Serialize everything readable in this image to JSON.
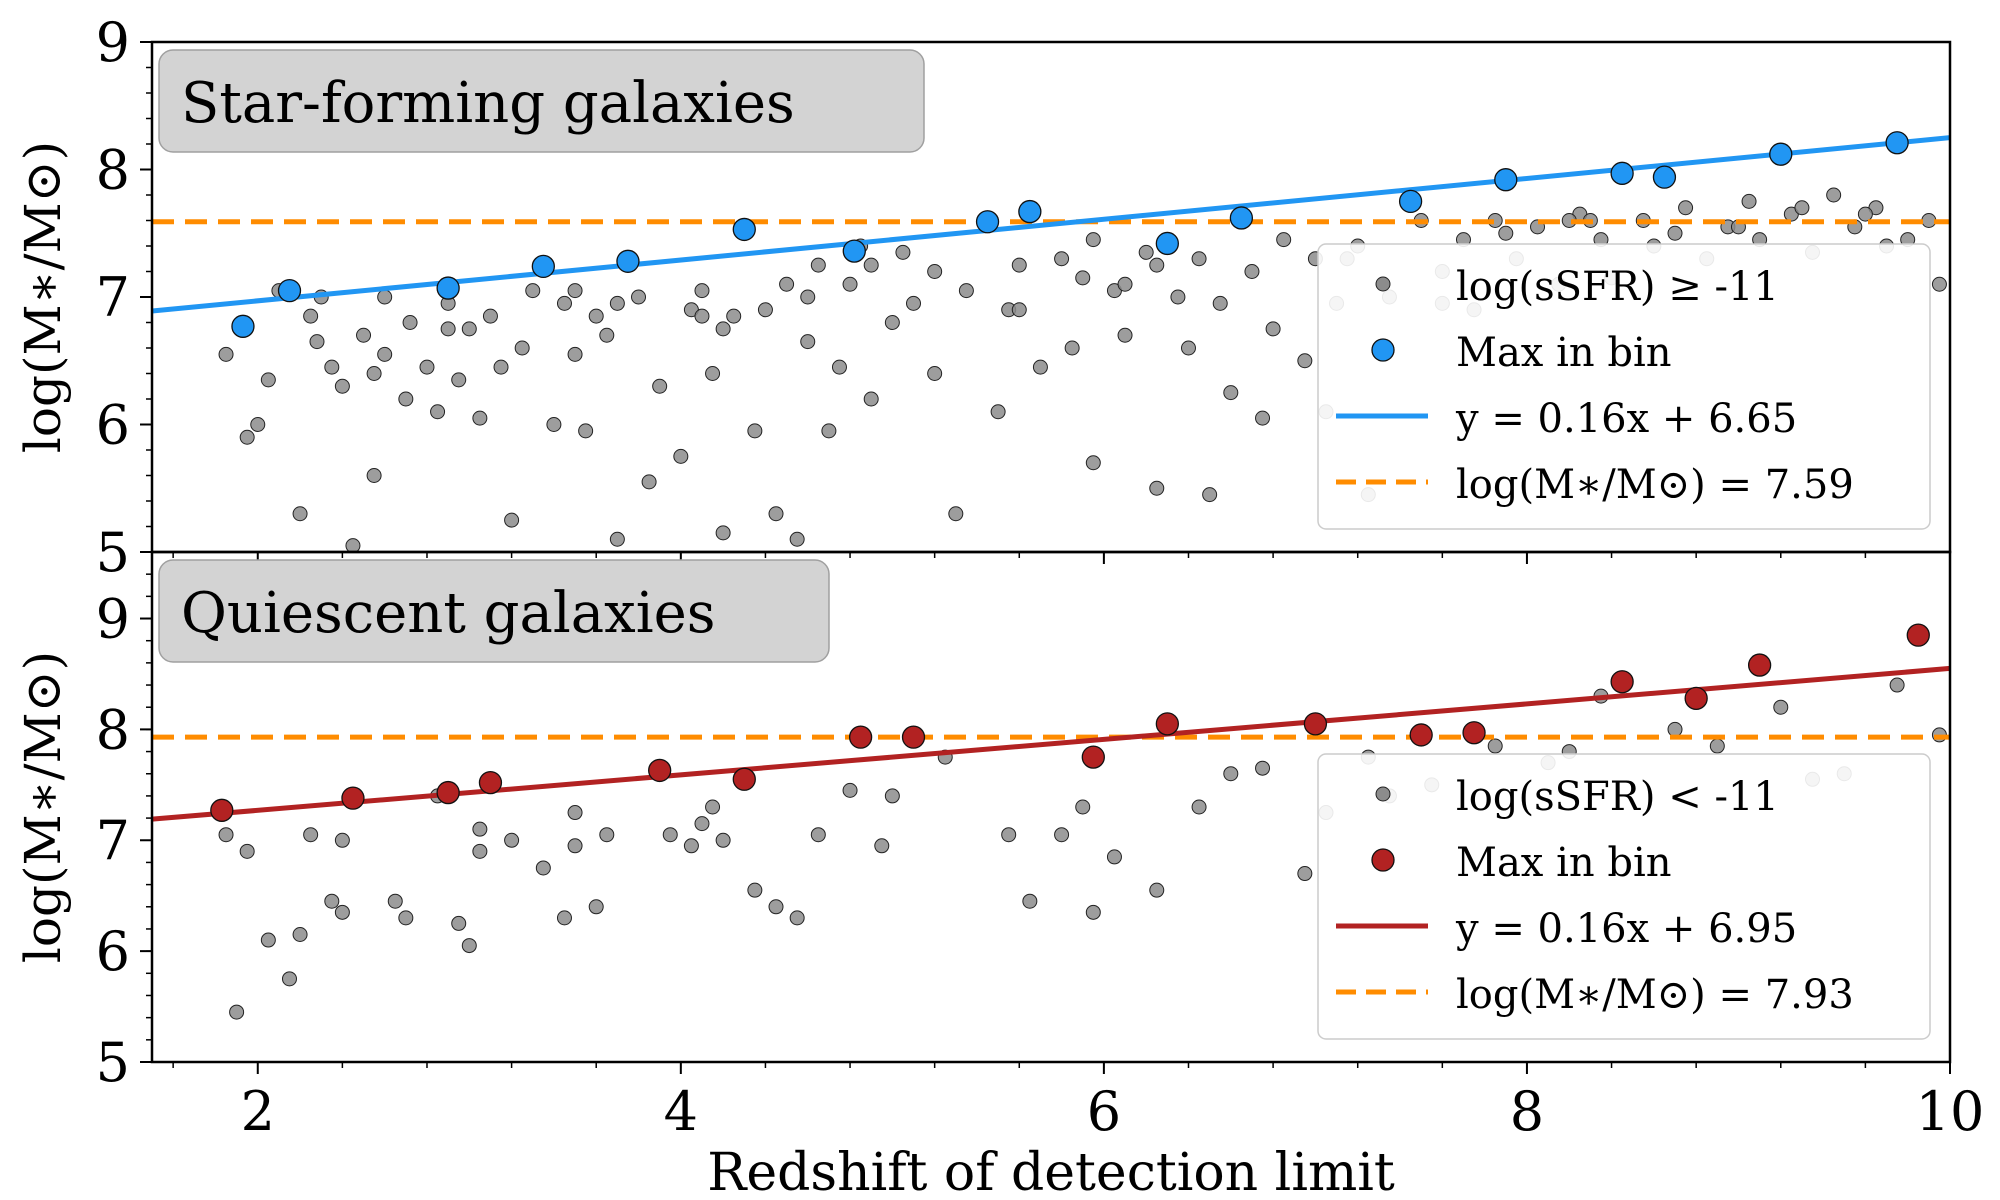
{
  "chart_data": [
    {
      "type": "scatter",
      "panel": "top",
      "title": "Star-forming galaxies",
      "ylabel": "log(M∗/M⊙)",
      "xlim": [
        1.5,
        10
      ],
      "ylim": [
        5,
        9
      ],
      "yticks": [
        "5",
        "6",
        "7",
        "8",
        "9"
      ],
      "legend": {
        "placement": "lower-right",
        "entries": {
          "scatter": "log(sSFR) ≥ -11",
          "max": "Max in bin",
          "fit": "y = 0.16x + 6.65",
          "hline": "log(M∗/M⊙) = 7.59"
        }
      },
      "colors": {
        "max": "#2196f3",
        "fit": "#2196f3",
        "hline": "#ff8c00",
        "scatter": "#8c8c8c"
      },
      "fit": {
        "slope": 0.16,
        "intercept": 6.65
      },
      "hline": 7.59,
      "max_points": {
        "x": [
          1.93,
          2.15,
          2.9,
          3.35,
          3.75,
          4.3,
          4.82,
          5.45,
          5.65,
          6.3,
          6.65,
          7.45,
          7.9,
          8.45,
          8.65,
          9.2,
          9.75
        ],
        "y": [
          6.77,
          7.05,
          7.07,
          7.24,
          7.28,
          7.53,
          7.36,
          7.59,
          7.67,
          7.42,
          7.62,
          7.75,
          7.92,
          7.97,
          7.94,
          8.12,
          8.21
        ]
      },
      "scatter": {
        "x": [
          1.85,
          1.95,
          2.05,
          2.1,
          2.2,
          2.28,
          2.3,
          2.4,
          2.45,
          2.5,
          2.55,
          2.6,
          2.6,
          2.7,
          2.72,
          2.8,
          2.85,
          2.9,
          2.95,
          3.05,
          3.1,
          3.2,
          3.25,
          3.3,
          3.4,
          3.45,
          3.5,
          3.55,
          3.6,
          3.65,
          3.7,
          3.8,
          3.85,
          3.9,
          4.0,
          4.05,
          4.1,
          4.15,
          4.2,
          4.25,
          4.35,
          4.4,
          4.45,
          4.5,
          4.55,
          4.6,
          4.65,
          4.7,
          4.75,
          4.8,
          4.85,
          4.9,
          5.0,
          5.05,
          5.1,
          5.2,
          5.3,
          5.35,
          5.5,
          5.55,
          5.6,
          5.7,
          5.8,
          5.85,
          5.9,
          5.95,
          6.05,
          6.1,
          6.2,
          6.25,
          6.35,
          6.4,
          6.45,
          6.5,
          6.6,
          6.7,
          6.75,
          6.85,
          6.95,
          7.0,
          7.05,
          7.1,
          7.2,
          7.25,
          7.35,
          7.5,
          7.6,
          7.7,
          7.75,
          7.85,
          7.95,
          8.05,
          8.15,
          8.25,
          8.35,
          8.4,
          8.55,
          8.6,
          8.75,
          8.85,
          8.95,
          9.05,
          9.1,
          9.25,
          9.35,
          9.45,
          9.55,
          9.65,
          9.8,
          9.9,
          2.0,
          2.25,
          2.55,
          3.0,
          3.15,
          3.7,
          4.1,
          4.6,
          5.2,
          5.95,
          6.25,
          6.55,
          7.15,
          7.9,
          8.3,
          8.7,
          9.3,
          9.6,
          9.95,
          2.35,
          2.9,
          3.5,
          4.2,
          4.9,
          5.6,
          6.1,
          6.8,
          7.6,
          8.2,
          9.0,
          9.7
        ],
        "y": [
          6.55,
          5.9,
          6.35,
          7.05,
          5.3,
          6.65,
          7.0,
          6.3,
          5.05,
          6.7,
          5.6,
          6.55,
          7.0,
          6.2,
          6.8,
          6.45,
          6.1,
          6.95,
          6.35,
          6.05,
          6.85,
          5.25,
          6.6,
          7.05,
          6.0,
          6.95,
          6.55,
          5.95,
          6.85,
          6.7,
          5.1,
          7.0,
          5.55,
          6.3,
          5.75,
          6.9,
          7.05,
          6.4,
          5.15,
          6.85,
          5.95,
          6.9,
          5.3,
          7.1,
          5.1,
          6.65,
          7.25,
          5.95,
          6.45,
          7.1,
          7.4,
          6.2,
          6.8,
          7.35,
          6.95,
          6.4,
          5.3,
          7.05,
          6.1,
          6.9,
          7.25,
          6.45,
          7.3,
          6.6,
          7.15,
          5.7,
          7.05,
          6.7,
          7.35,
          5.5,
          7.0,
          6.6,
          7.3,
          5.45,
          6.25,
          7.2,
          6.05,
          7.45,
          6.5,
          7.3,
          6.1,
          6.95,
          7.4,
          5.45,
          7.0,
          7.6,
          7.2,
          7.45,
          6.9,
          7.6,
          7.3,
          7.55,
          7.1,
          7.65,
          7.45,
          7.15,
          7.6,
          7.4,
          7.7,
          7.3,
          7.55,
          7.75,
          7.45,
          7.65,
          7.35,
          7.8,
          7.55,
          7.7,
          7.45,
          7.6,
          6.0,
          6.85,
          6.4,
          6.75,
          6.45,
          6.95,
          6.85,
          7.0,
          7.2,
          7.45,
          7.25,
          6.95,
          7.3,
          7.5,
          7.6,
          7.5,
          7.7,
          7.65,
          7.1,
          6.45,
          6.75,
          7.05,
          6.75,
          7.25,
          6.9,
          7.1,
          6.75,
          6.95,
          7.6,
          7.55,
          7.4
        ]
      }
    },
    {
      "type": "scatter",
      "panel": "bottom",
      "title": "Quiescent galaxies",
      "ylabel": "log(M∗/M⊙)",
      "xlabel": "Redshift of detection limit",
      "xlim": [
        1.5,
        10
      ],
      "ylim": [
        5,
        9.6
      ],
      "xticks": [
        "2",
        "4",
        "6",
        "8",
        "10"
      ],
      "yticks": [
        "5",
        "6",
        "7",
        "8",
        "9"
      ],
      "legend": {
        "placement": "lower-right",
        "entries": {
          "scatter": "log(sSFR) < -11",
          "max": "Max in bin",
          "fit": "y = 0.16x + 6.95",
          "hline": "log(M∗/M⊙) = 7.93"
        }
      },
      "colors": {
        "max": "#b22222",
        "fit": "#b22222",
        "hline": "#ff8c00",
        "scatter": "#8c8c8c"
      },
      "fit": {
        "slope": 0.16,
        "intercept": 6.95
      },
      "hline": 7.93,
      "max_points": {
        "x": [
          1.83,
          2.45,
          2.9,
          3.1,
          3.9,
          4.3,
          4.85,
          5.1,
          5.95,
          6.3,
          7.0,
          7.5,
          7.75,
          8.45,
          8.8,
          9.1,
          9.85
        ],
        "y": [
          7.27,
          7.38,
          7.43,
          7.52,
          7.63,
          7.55,
          7.93,
          7.93,
          7.75,
          8.05,
          8.05,
          7.95,
          7.97,
          8.43,
          8.28,
          8.58,
          8.85
        ]
      },
      "scatter": {
        "x": [
          1.85,
          1.9,
          1.95,
          2.05,
          2.15,
          2.2,
          2.25,
          2.35,
          2.4,
          2.65,
          2.7,
          2.85,
          2.95,
          3.0,
          3.05,
          3.2,
          3.35,
          3.45,
          3.5,
          3.6,
          3.65,
          3.95,
          4.05,
          4.15,
          4.2,
          4.35,
          4.45,
          4.55,
          4.65,
          4.8,
          4.95,
          5.25,
          5.55,
          5.65,
          5.8,
          5.95,
          6.05,
          6.25,
          6.45,
          6.6,
          6.95,
          7.05,
          7.35,
          7.55,
          7.85,
          8.1,
          8.35,
          8.9,
          9.2,
          9.5,
          9.75,
          9.95,
          2.4,
          3.05,
          3.5,
          4.1,
          5.0,
          5.9,
          6.75,
          7.25,
          8.2,
          8.7,
          9.35
        ],
        "y": [
          7.05,
          5.45,
          6.9,
          6.1,
          5.75,
          6.15,
          7.05,
          6.45,
          6.35,
          6.45,
          6.3,
          7.4,
          6.25,
          6.05,
          7.1,
          7.0,
          6.75,
          6.3,
          7.25,
          6.4,
          7.05,
          7.05,
          6.95,
          7.3,
          7.0,
          6.55,
          6.4,
          6.3,
          7.05,
          7.45,
          6.95,
          7.75,
          7.05,
          6.45,
          7.05,
          6.35,
          6.85,
          6.55,
          7.3,
          7.6,
          6.7,
          7.25,
          7.4,
          7.5,
          7.85,
          7.7,
          8.3,
          7.85,
          8.2,
          7.6,
          8.4,
          7.95,
          7.0,
          6.9,
          6.95,
          7.15,
          7.4,
          7.3,
          7.65,
          7.75,
          7.8,
          8.0,
          7.55
        ]
      }
    }
  ]
}
